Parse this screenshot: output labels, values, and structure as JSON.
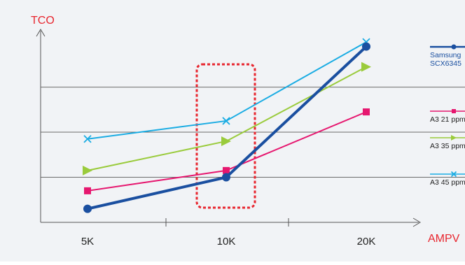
{
  "chart_data": {
    "type": "line",
    "title": "",
    "ylabel": "TCO",
    "xlabel": "AMPV",
    "categories": [
      "5K",
      "10K",
      "20K"
    ],
    "y_ticks_labeled": false,
    "grid": "horizontal",
    "legend_placement": "right",
    "highlight": {
      "category": "10K",
      "style": "dotted-box",
      "color": "#e8262f"
    },
    "ylim": [
      0,
      4.25
    ],
    "series": [
      {
        "name": "Samsung SCX6345",
        "name_lines": [
          "Samsung",
          "SCX6345"
        ],
        "color": "#1a4fa0",
        "marker": "circle",
        "values": [
          0.3,
          1.0,
          3.9
        ]
      },
      {
        "name": "A3 21 ppm",
        "color": "#e6176f",
        "marker": "square",
        "values": [
          0.7,
          1.15,
          2.45
        ]
      },
      {
        "name": "A3 35 ppm",
        "color": "#9acb3c",
        "marker": "arrow",
        "values": [
          1.15,
          1.8,
          3.45
        ]
      },
      {
        "name": "A3 45 ppm",
        "color": "#1aace3",
        "marker": "x",
        "values": [
          1.85,
          2.25,
          4.0
        ]
      }
    ]
  }
}
